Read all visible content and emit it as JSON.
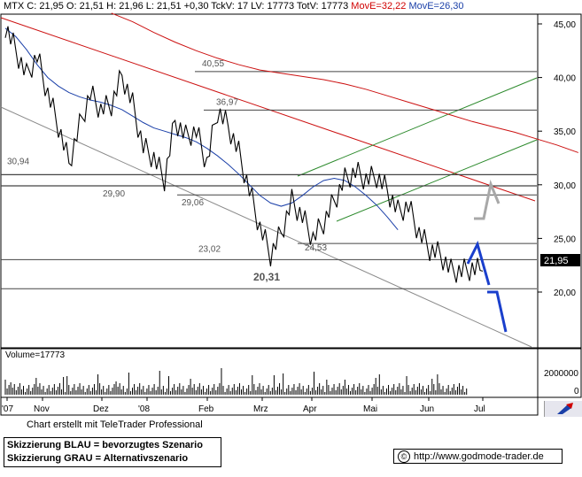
{
  "header": {
    "prefix": "MTX C: 21,95  O: 21,51  H: 21,96  L: 21,51  +0,30  TckV: 17  LV: 17773  TotV: 17773",
    "moveA": "MovE=32,22",
    "moveB": "MovE=26,30"
  },
  "footer": {
    "credit": "Chart erstellt mit TeleTrader Professional",
    "legend_line1": "Skizzierung BLAU = bevorzugtes Szenario",
    "legend_line2": "Skizzierung GRAU = Alternativszenario",
    "url": "http://www.godmode-trader.de"
  },
  "colors": {
    "price": "#000000",
    "ma_short": "#1a3fa8",
    "ma_long": "#cc1111",
    "channel": "#2c8a2c",
    "scenario_blue": "#1a3fcc",
    "scenario_gray": "#a8a8a8",
    "horizontal": "#444444",
    "trend": "#8a8a8a"
  },
  "chart_data": {
    "type": "line",
    "title": "MTX",
    "x_ticks": [
      "'07",
      "Nov",
      "Dez",
      "'08",
      "Feb",
      "Mrz",
      "Apr",
      "Mai",
      "Jun",
      "Jul"
    ],
    "y_ticks": [
      "45,00",
      "40,00",
      "35,00",
      "30,00",
      "25,00",
      "20,00"
    ],
    "ylim": [
      14.5,
      46.5
    ],
    "last_price": "21,95",
    "price_series": {
      "weeks": [
        0,
        1,
        2,
        3,
        4,
        5,
        6,
        7,
        8,
        9,
        10,
        11,
        12,
        13,
        14,
        15,
        16,
        17,
        18,
        19,
        20,
        21,
        22,
        23,
        24,
        25,
        26,
        27,
        28,
        29,
        30,
        31,
        32,
        33,
        34,
        35,
        36,
        37,
        38,
        39,
        40,
        41,
        42,
        43,
        44,
        45
      ],
      "values": [
        44.8,
        42.5,
        40.2,
        42.0,
        38.5,
        35.5,
        32.0,
        35.5,
        38.5,
        37.0,
        37.5,
        40.2,
        37.5,
        33.5,
        32.5,
        30.5,
        36.0,
        34.5,
        35.0,
        32.0,
        36.9,
        35.5,
        33.0,
        29.5,
        26.0,
        23.5,
        25.5,
        28.5,
        27.0,
        25.0,
        26.5,
        28.5,
        30.5,
        31.2,
        30.5,
        30.8,
        29.5,
        27.5,
        28.0,
        25.5,
        24.0,
        23.5,
        22.0,
        21.95,
        22.2,
        21.95
      ]
    },
    "ma_short": [
      44.6,
      43.8,
      42.6,
      41.2,
      40.0,
      39.2,
      38.6,
      38.2,
      37.9,
      37.7,
      37.4,
      37.0,
      36.4,
      35.8,
      35.3,
      35.0,
      34.7,
      34.4,
      34.0,
      33.4,
      32.7,
      31.9,
      31.0,
      30.0,
      29.0,
      28.3,
      28.0,
      28.3,
      29.0,
      29.8,
      30.4,
      30.6,
      30.4,
      29.8,
      29.0,
      28.1,
      27.0,
      25.8
    ],
    "ma_long": [
      46.0,
      45.2,
      44.2,
      43.3,
      42.5,
      41.8,
      41.2,
      40.7,
      40.4,
      40.1,
      39.8,
      39.4,
      38.9,
      38.3,
      37.7,
      37.1,
      36.5,
      35.9,
      35.4,
      34.9,
      34.3,
      33.7,
      33.0
    ],
    "horizontal_levels": [
      {
        "value": 40.55,
        "label": "40,55"
      },
      {
        "value": 36.97,
        "label": "36,97"
      },
      {
        "value": 30.94,
        "label": "30,94"
      },
      {
        "value": 29.9,
        "label": "29,90"
      },
      {
        "value": 29.06,
        "label": "29,06"
      },
      {
        "value": 24.53,
        "label": "24,53"
      },
      {
        "value": 23.02,
        "label": "23,02"
      },
      {
        "value": 20.31,
        "label": "20,31"
      }
    ],
    "volume": {
      "label": "Volume=17773",
      "y_tick": "2000000",
      "y_tick_zero": "0"
    }
  }
}
